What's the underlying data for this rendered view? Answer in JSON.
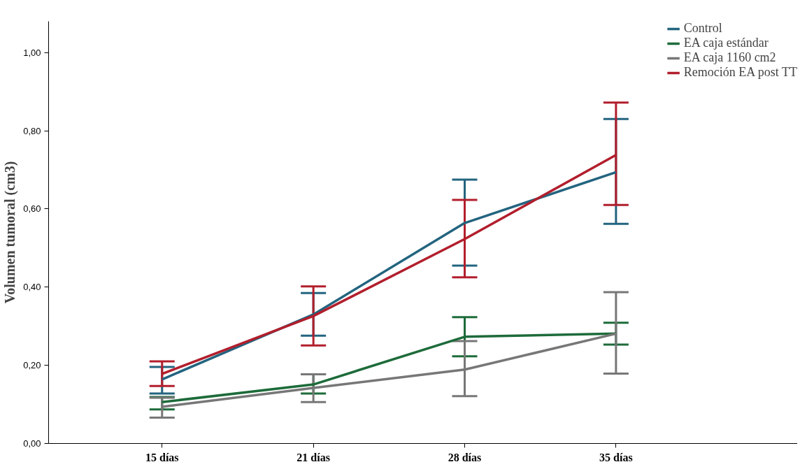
{
  "chart_data": {
    "type": "line",
    "ylabel": "Volumen tumoral (cm3)",
    "categories": [
      "15 días",
      "21 días",
      "28 días",
      "35 días"
    ],
    "ylim": [
      0,
      1.08
    ],
    "yticks": [
      {
        "value": 0,
        "label": "0,00"
      },
      {
        "value": 0.2,
        "label": "0,20"
      },
      {
        "value": 0.4,
        "label": "0,40"
      },
      {
        "value": 0.6,
        "label": "0,60"
      },
      {
        "value": 0.8,
        "label": "0,80"
      },
      {
        "value": 1.0,
        "label": "1,00"
      }
    ],
    "grid": false,
    "legend": "top right",
    "line_style": "solid",
    "series": [
      {
        "name": "Control",
        "color": "#23647f",
        "values": [
          0.164,
          0.33,
          0.564,
          0.694
        ],
        "errors": [
          [
            0.128,
            0.196
          ],
          [
            0.276,
            0.385
          ],
          [
            0.455,
            0.675
          ],
          [
            0.562,
            0.83
          ]
        ]
      },
      {
        "name": "EA caja estándar",
        "color": "#1d6b3a",
        "values": [
          0.106,
          0.151,
          0.273,
          0.281
        ],
        "errors": [
          [
            0.087,
            0.119
          ],
          [
            0.128,
            0.177
          ],
          [
            0.223,
            0.323
          ],
          [
            0.253,
            0.309
          ]
        ]
      },
      {
        "name": "EA caja 1160 cm2",
        "color": "#777777",
        "values": [
          0.094,
          0.142,
          0.189,
          0.281
        ],
        "errors": [
          [
            0.066,
            0.117
          ],
          [
            0.106,
            0.177
          ],
          [
            0.121,
            0.262
          ],
          [
            0.179,
            0.387
          ]
        ]
      },
      {
        "name": "Remoción EA post TT",
        "color": "#b21e2c",
        "values": [
          0.178,
          0.326,
          0.523,
          0.738
        ],
        "errors": [
          [
            0.147,
            0.21
          ],
          [
            0.251,
            0.402
          ],
          [
            0.425,
            0.623
          ],
          [
            0.61,
            0.872
          ]
        ]
      }
    ]
  }
}
